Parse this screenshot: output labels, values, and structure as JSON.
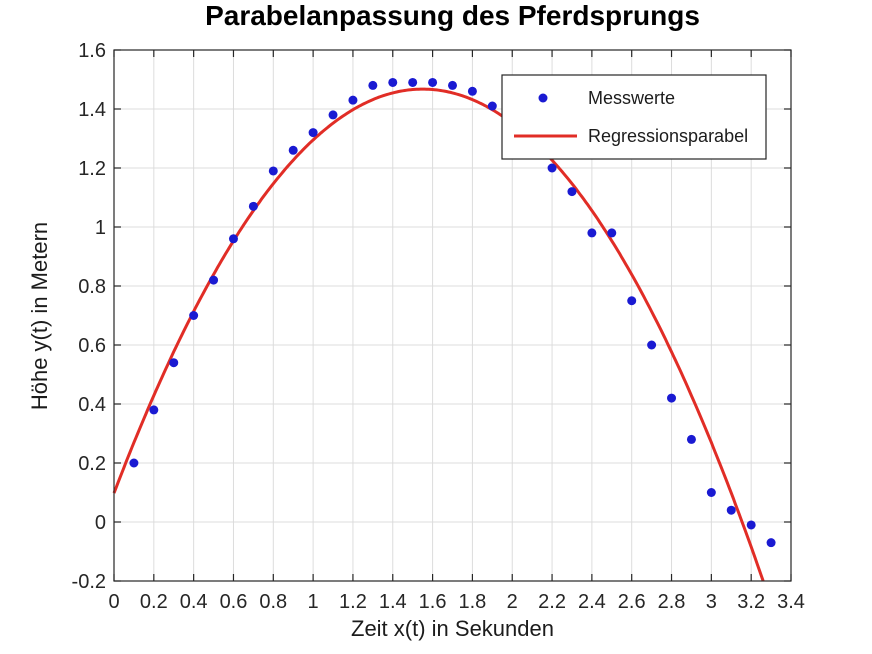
{
  "chart_data": {
    "type": "scatter",
    "title": "Parabelanpassung des Pferdsprungs",
    "xlabel": "Zeit x(t) in Sekunden",
    "ylabel": "Höhe y(t) in Metern",
    "xlim": [
      0,
      3.4
    ],
    "ylim": [
      -0.2,
      1.6
    ],
    "grid": true,
    "xticks": [
      0,
      0.2,
      0.4,
      0.6,
      0.8,
      1,
      1.2,
      1.4,
      1.6,
      1.8,
      2,
      2.2,
      2.4,
      2.6,
      2.8,
      3,
      3.2,
      3.4
    ],
    "xtick_labels": [
      "0",
      "0.2",
      "0.4",
      "0.6",
      "0.8",
      "1",
      "1.2",
      "1.4",
      "1.6",
      "1.8",
      "2",
      "2.2",
      "2.4",
      "2.6",
      "2.8",
      "3",
      "3.2",
      "3.4"
    ],
    "yticks": [
      -0.2,
      0,
      0.2,
      0.4,
      0.6,
      0.8,
      1,
      1.2,
      1.4,
      1.6
    ],
    "ytick_labels": [
      "-0.2",
      "0",
      "0.2",
      "0.4",
      "0.6",
      "0.8",
      "1",
      "1.2",
      "1.4",
      "1.6"
    ],
    "legend": {
      "position": "northeast",
      "items": [
        {
          "label": "Messwerte",
          "marker": "dot"
        },
        {
          "label": "Regressionsparabel",
          "marker": "line"
        }
      ]
    },
    "series": [
      {
        "name": "Messwerte",
        "type": "scatter",
        "color": "#1a1ad2",
        "points": [
          [
            0.1,
            0.2
          ],
          [
            0.2,
            0.38
          ],
          [
            0.3,
            0.54
          ],
          [
            0.4,
            0.7
          ],
          [
            0.5,
            0.82
          ],
          [
            0.6,
            0.96
          ],
          [
            0.7,
            1.07
          ],
          [
            0.8,
            1.19
          ],
          [
            0.9,
            1.26
          ],
          [
            1.0,
            1.32
          ],
          [
            1.1,
            1.38
          ],
          [
            1.2,
            1.43
          ],
          [
            1.3,
            1.48
          ],
          [
            1.4,
            1.49
          ],
          [
            1.5,
            1.49
          ],
          [
            1.6,
            1.49
          ],
          [
            1.7,
            1.48
          ],
          [
            1.8,
            1.46
          ],
          [
            1.9,
            1.41
          ],
          [
            2.2,
            1.2
          ],
          [
            2.3,
            1.12
          ],
          [
            2.4,
            0.98
          ],
          [
            2.5,
            0.98
          ],
          [
            2.6,
            0.75
          ],
          [
            2.7,
            0.6
          ],
          [
            2.8,
            0.42
          ],
          [
            2.9,
            0.28
          ],
          [
            3.0,
            0.1
          ],
          [
            3.1,
            0.04
          ],
          [
            3.2,
            -0.01
          ],
          [
            3.3,
            -0.07
          ]
        ]
      },
      {
        "name": "Regressionsparabel",
        "type": "line",
        "color": "#e12d26",
        "fit_coefficients": {
          "a": -0.57,
          "b": 1.767,
          "c": 0.098
        }
      }
    ],
    "colors": {
      "grid": "#dcdcdc",
      "axis": "#262626",
      "tick_label": "#262626",
      "background": "#ffffff"
    }
  }
}
